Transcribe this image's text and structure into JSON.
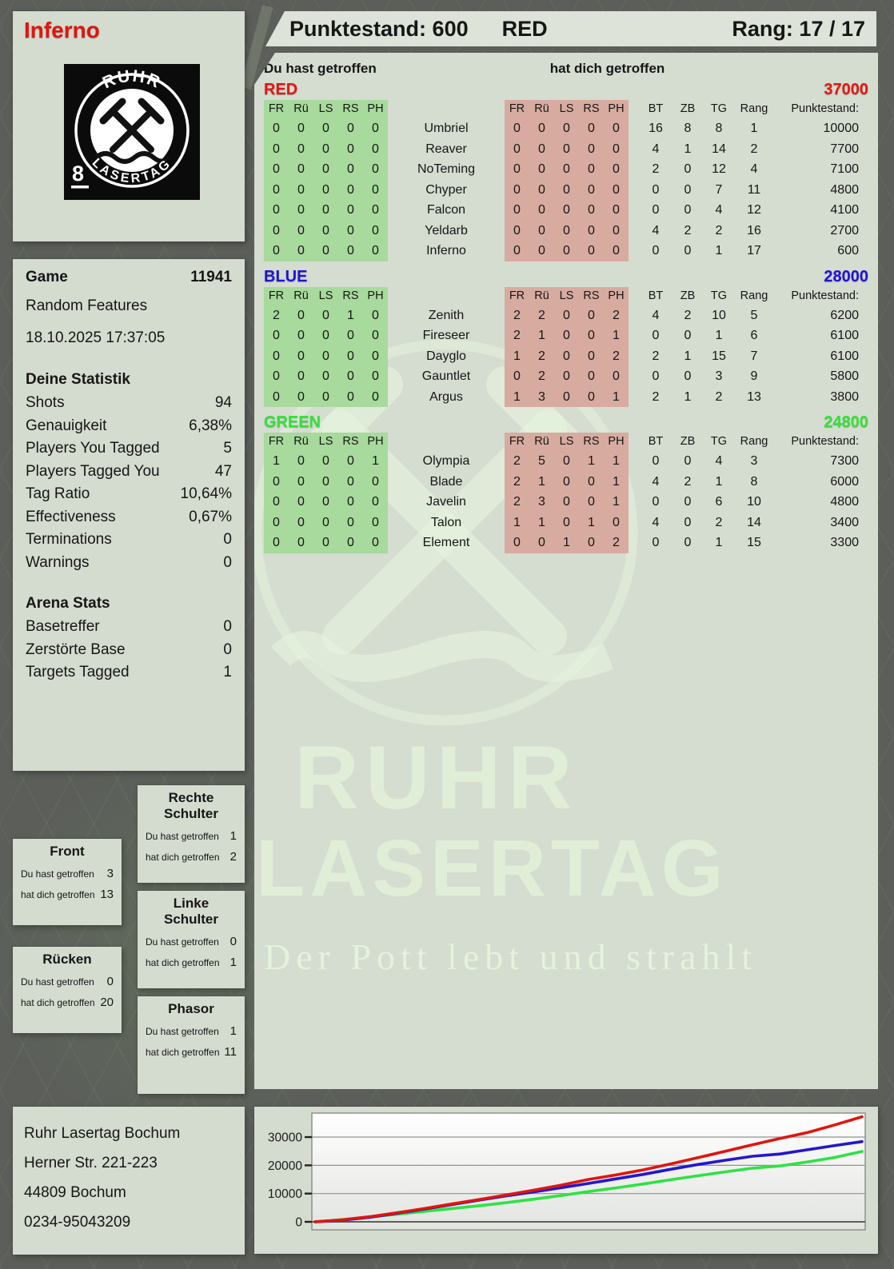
{
  "player": {
    "name": "Inferno",
    "badge": "8"
  },
  "logo": {
    "top": "RUHR",
    "bottom": "LASERTAG"
  },
  "header": {
    "punktestand_label": "Punktestand:",
    "punktestand_value": "600",
    "team": "RED",
    "rang_label": "Rang:",
    "rang_value": "17 / 17"
  },
  "game_info": {
    "game_label": "Game",
    "game_number": "11941",
    "mode": "Random Features",
    "datetime": "18.10.2025 17:37:05"
  },
  "deine_statistik": {
    "title": "Deine Statistik",
    "rows": [
      {
        "label": "Shots",
        "value": "94"
      },
      {
        "label": "Genauigkeit",
        "value": "6,38%"
      },
      {
        "label": "Players You Tagged",
        "value": "5"
      },
      {
        "label": "Players Tagged You",
        "value": "47"
      },
      {
        "label": "Tag Ratio",
        "value": "10,64%"
      },
      {
        "label": "Effectiveness",
        "value": "0,67%"
      },
      {
        "label": "Terminations",
        "value": "0"
      },
      {
        "label": "Warnings",
        "value": "0"
      }
    ]
  },
  "arena_stats": {
    "title": "Arena Stats",
    "rows": [
      {
        "label": "Basetreffer",
        "value": "0"
      },
      {
        "label": "Zerstörte Base",
        "value": "0"
      },
      {
        "label": "Targets Tagged",
        "value": "1"
      }
    ]
  },
  "body_parts": {
    "you_label": "Du hast getroffen",
    "them_label": "hat dich getroffen",
    "parts": [
      {
        "title": "Rechte Schulter",
        "you": "1",
        "them": "2"
      },
      {
        "title": "Front",
        "you": "3",
        "them": "13"
      },
      {
        "title": "Linke Schulter",
        "you": "0",
        "them": "1"
      },
      {
        "title": "Rücken",
        "you": "0",
        "them": "20"
      },
      {
        "title": "Phasor",
        "you": "1",
        "them": "11"
      }
    ]
  },
  "scoreboard": {
    "col_you": "Du hast getroffen",
    "col_them": "hat dich getroffen",
    "hit_cols": [
      "FR",
      "Rü",
      "LS",
      "RS",
      "PH"
    ],
    "stat_cols": [
      "BT",
      "ZB",
      "TG",
      "Rang",
      "Punktestand:"
    ],
    "teams": [
      {
        "name": "RED",
        "color": "#e8150f",
        "total": "37000",
        "players": [
          {
            "name": "Umbriel",
            "you": [
              0,
              0,
              0,
              0,
              0
            ],
            "them": [
              0,
              0,
              0,
              0,
              0
            ],
            "bt": 16,
            "zb": 8,
            "tg": 8,
            "rang": 1,
            "punktestand": "10000"
          },
          {
            "name": "Reaver",
            "you": [
              0,
              0,
              0,
              0,
              0
            ],
            "them": [
              0,
              0,
              0,
              0,
              0
            ],
            "bt": 4,
            "zb": 1,
            "tg": 14,
            "rang": 2,
            "punktestand": "7700"
          },
          {
            "name": "NoTeming",
            "you": [
              0,
              0,
              0,
              0,
              0
            ],
            "them": [
              0,
              0,
              0,
              0,
              0
            ],
            "bt": 2,
            "zb": 0,
            "tg": 12,
            "rang": 4,
            "punktestand": "7100"
          },
          {
            "name": "Chyper",
            "you": [
              0,
              0,
              0,
              0,
              0
            ],
            "them": [
              0,
              0,
              0,
              0,
              0
            ],
            "bt": 0,
            "zb": 0,
            "tg": 7,
            "rang": 11,
            "punktestand": "4800"
          },
          {
            "name": "Falcon",
            "you": [
              0,
              0,
              0,
              0,
              0
            ],
            "them": [
              0,
              0,
              0,
              0,
              0
            ],
            "bt": 0,
            "zb": 0,
            "tg": 4,
            "rang": 12,
            "punktestand": "4100"
          },
          {
            "name": "Yeldarb",
            "you": [
              0,
              0,
              0,
              0,
              0
            ],
            "them": [
              0,
              0,
              0,
              0,
              0
            ],
            "bt": 4,
            "zb": 2,
            "tg": 2,
            "rang": 16,
            "punktestand": "2700"
          },
          {
            "name": "Inferno",
            "you": [
              0,
              0,
              0,
              0,
              0
            ],
            "them": [
              0,
              0,
              0,
              0,
              0
            ],
            "bt": 0,
            "zb": 0,
            "tg": 1,
            "rang": 17,
            "punktestand": "600"
          }
        ]
      },
      {
        "name": "BLUE",
        "color": "#1f13da",
        "total": "28000",
        "players": [
          {
            "name": "Zenith",
            "you": [
              2,
              0,
              0,
              1,
              0
            ],
            "them": [
              2,
              2,
              0,
              0,
              2
            ],
            "bt": 4,
            "zb": 2,
            "tg": 10,
            "rang": 5,
            "punktestand": "6200"
          },
          {
            "name": "Fireseer",
            "you": [
              0,
              0,
              0,
              0,
              0
            ],
            "them": [
              2,
              1,
              0,
              0,
              1
            ],
            "bt": 0,
            "zb": 0,
            "tg": 1,
            "rang": 6,
            "punktestand": "6100"
          },
          {
            "name": "Dayglo",
            "you": [
              0,
              0,
              0,
              0,
              0
            ],
            "them": [
              1,
              2,
              0,
              0,
              2
            ],
            "bt": 2,
            "zb": 1,
            "tg": 15,
            "rang": 7,
            "punktestand": "6100"
          },
          {
            "name": "Gauntlet",
            "you": [
              0,
              0,
              0,
              0,
              0
            ],
            "them": [
              0,
              2,
              0,
              0,
              0
            ],
            "bt": 0,
            "zb": 0,
            "tg": 3,
            "rang": 9,
            "punktestand": "5800"
          },
          {
            "name": "Argus",
            "you": [
              0,
              0,
              0,
              0,
              0
            ],
            "them": [
              1,
              3,
              0,
              0,
              1
            ],
            "bt": 2,
            "zb": 1,
            "tg": 2,
            "rang": 13,
            "punktestand": "3800"
          }
        ]
      },
      {
        "name": "GREEN",
        "color": "#35e23a",
        "total": "24800",
        "players": [
          {
            "name": "Olympia",
            "you": [
              1,
              0,
              0,
              0,
              1
            ],
            "them": [
              2,
              5,
              0,
              1,
              1
            ],
            "bt": 0,
            "zb": 0,
            "tg": 4,
            "rang": 3,
            "punktestand": "7300"
          },
          {
            "name": "Blade",
            "you": [
              0,
              0,
              0,
              0,
              0
            ],
            "them": [
              2,
              1,
              0,
              0,
              1
            ],
            "bt": 4,
            "zb": 2,
            "tg": 1,
            "rang": 8,
            "punktestand": "6000"
          },
          {
            "name": "Javelin",
            "you": [
              0,
              0,
              0,
              0,
              0
            ],
            "them": [
              2,
              3,
              0,
              0,
              1
            ],
            "bt": 0,
            "zb": 0,
            "tg": 6,
            "rang": 10,
            "punktestand": "4800"
          },
          {
            "name": "Talon",
            "you": [
              0,
              0,
              0,
              0,
              0
            ],
            "them": [
              1,
              1,
              0,
              1,
              0
            ],
            "bt": 4,
            "zb": 0,
            "tg": 2,
            "rang": 14,
            "punktestand": "3400"
          },
          {
            "name": "Element",
            "you": [
              0,
              0,
              0,
              0,
              0
            ],
            "them": [
              0,
              0,
              1,
              0,
              2
            ],
            "bt": 0,
            "zb": 0,
            "tg": 1,
            "rang": 15,
            "punktestand": "3300"
          }
        ]
      }
    ]
  },
  "watermark": {
    "line1": "RUHR",
    "line2": "LASERTAG",
    "tagline": "Der Pott lebt und strahlt"
  },
  "contact": {
    "lines": [
      "Ruhr Lasertag Bochum",
      "Herner Str. 221-223",
      "44809 Bochum",
      "0234-95043209"
    ]
  },
  "chart_data": {
    "type": "line",
    "title": "",
    "xlabel": "",
    "ylabel": "",
    "ylim": [
      0,
      38500
    ],
    "yticks": [
      0,
      10000,
      20000,
      30000
    ],
    "grid": true,
    "legend": "none",
    "series": [
      {
        "name": "RED",
        "color": "#e0150f",
        "values": [
          0,
          700,
          1800,
          3200,
          4700,
          6300,
          7900,
          9500,
          11200,
          13000,
          15000,
          16600,
          18400,
          20500,
          22700,
          25000,
          27300,
          29500,
          31600,
          34300,
          37200
        ]
      },
      {
        "name": "BLUE",
        "color": "#2317cf",
        "values": [
          0,
          600,
          1600,
          3000,
          4500,
          6100,
          7700,
          9200,
          10600,
          12100,
          13600,
          15200,
          16800,
          18600,
          20300,
          21800,
          23200,
          24000,
          25500,
          27000,
          28400
        ]
      },
      {
        "name": "GREEN",
        "color": "#2ee244",
        "values": [
          0,
          800,
          1700,
          2700,
          3700,
          4700,
          5700,
          6800,
          8000,
          9300,
          10700,
          12000,
          13400,
          14900,
          16300,
          17700,
          19000,
          19800,
          21200,
          22800,
          24900
        ]
      }
    ]
  }
}
